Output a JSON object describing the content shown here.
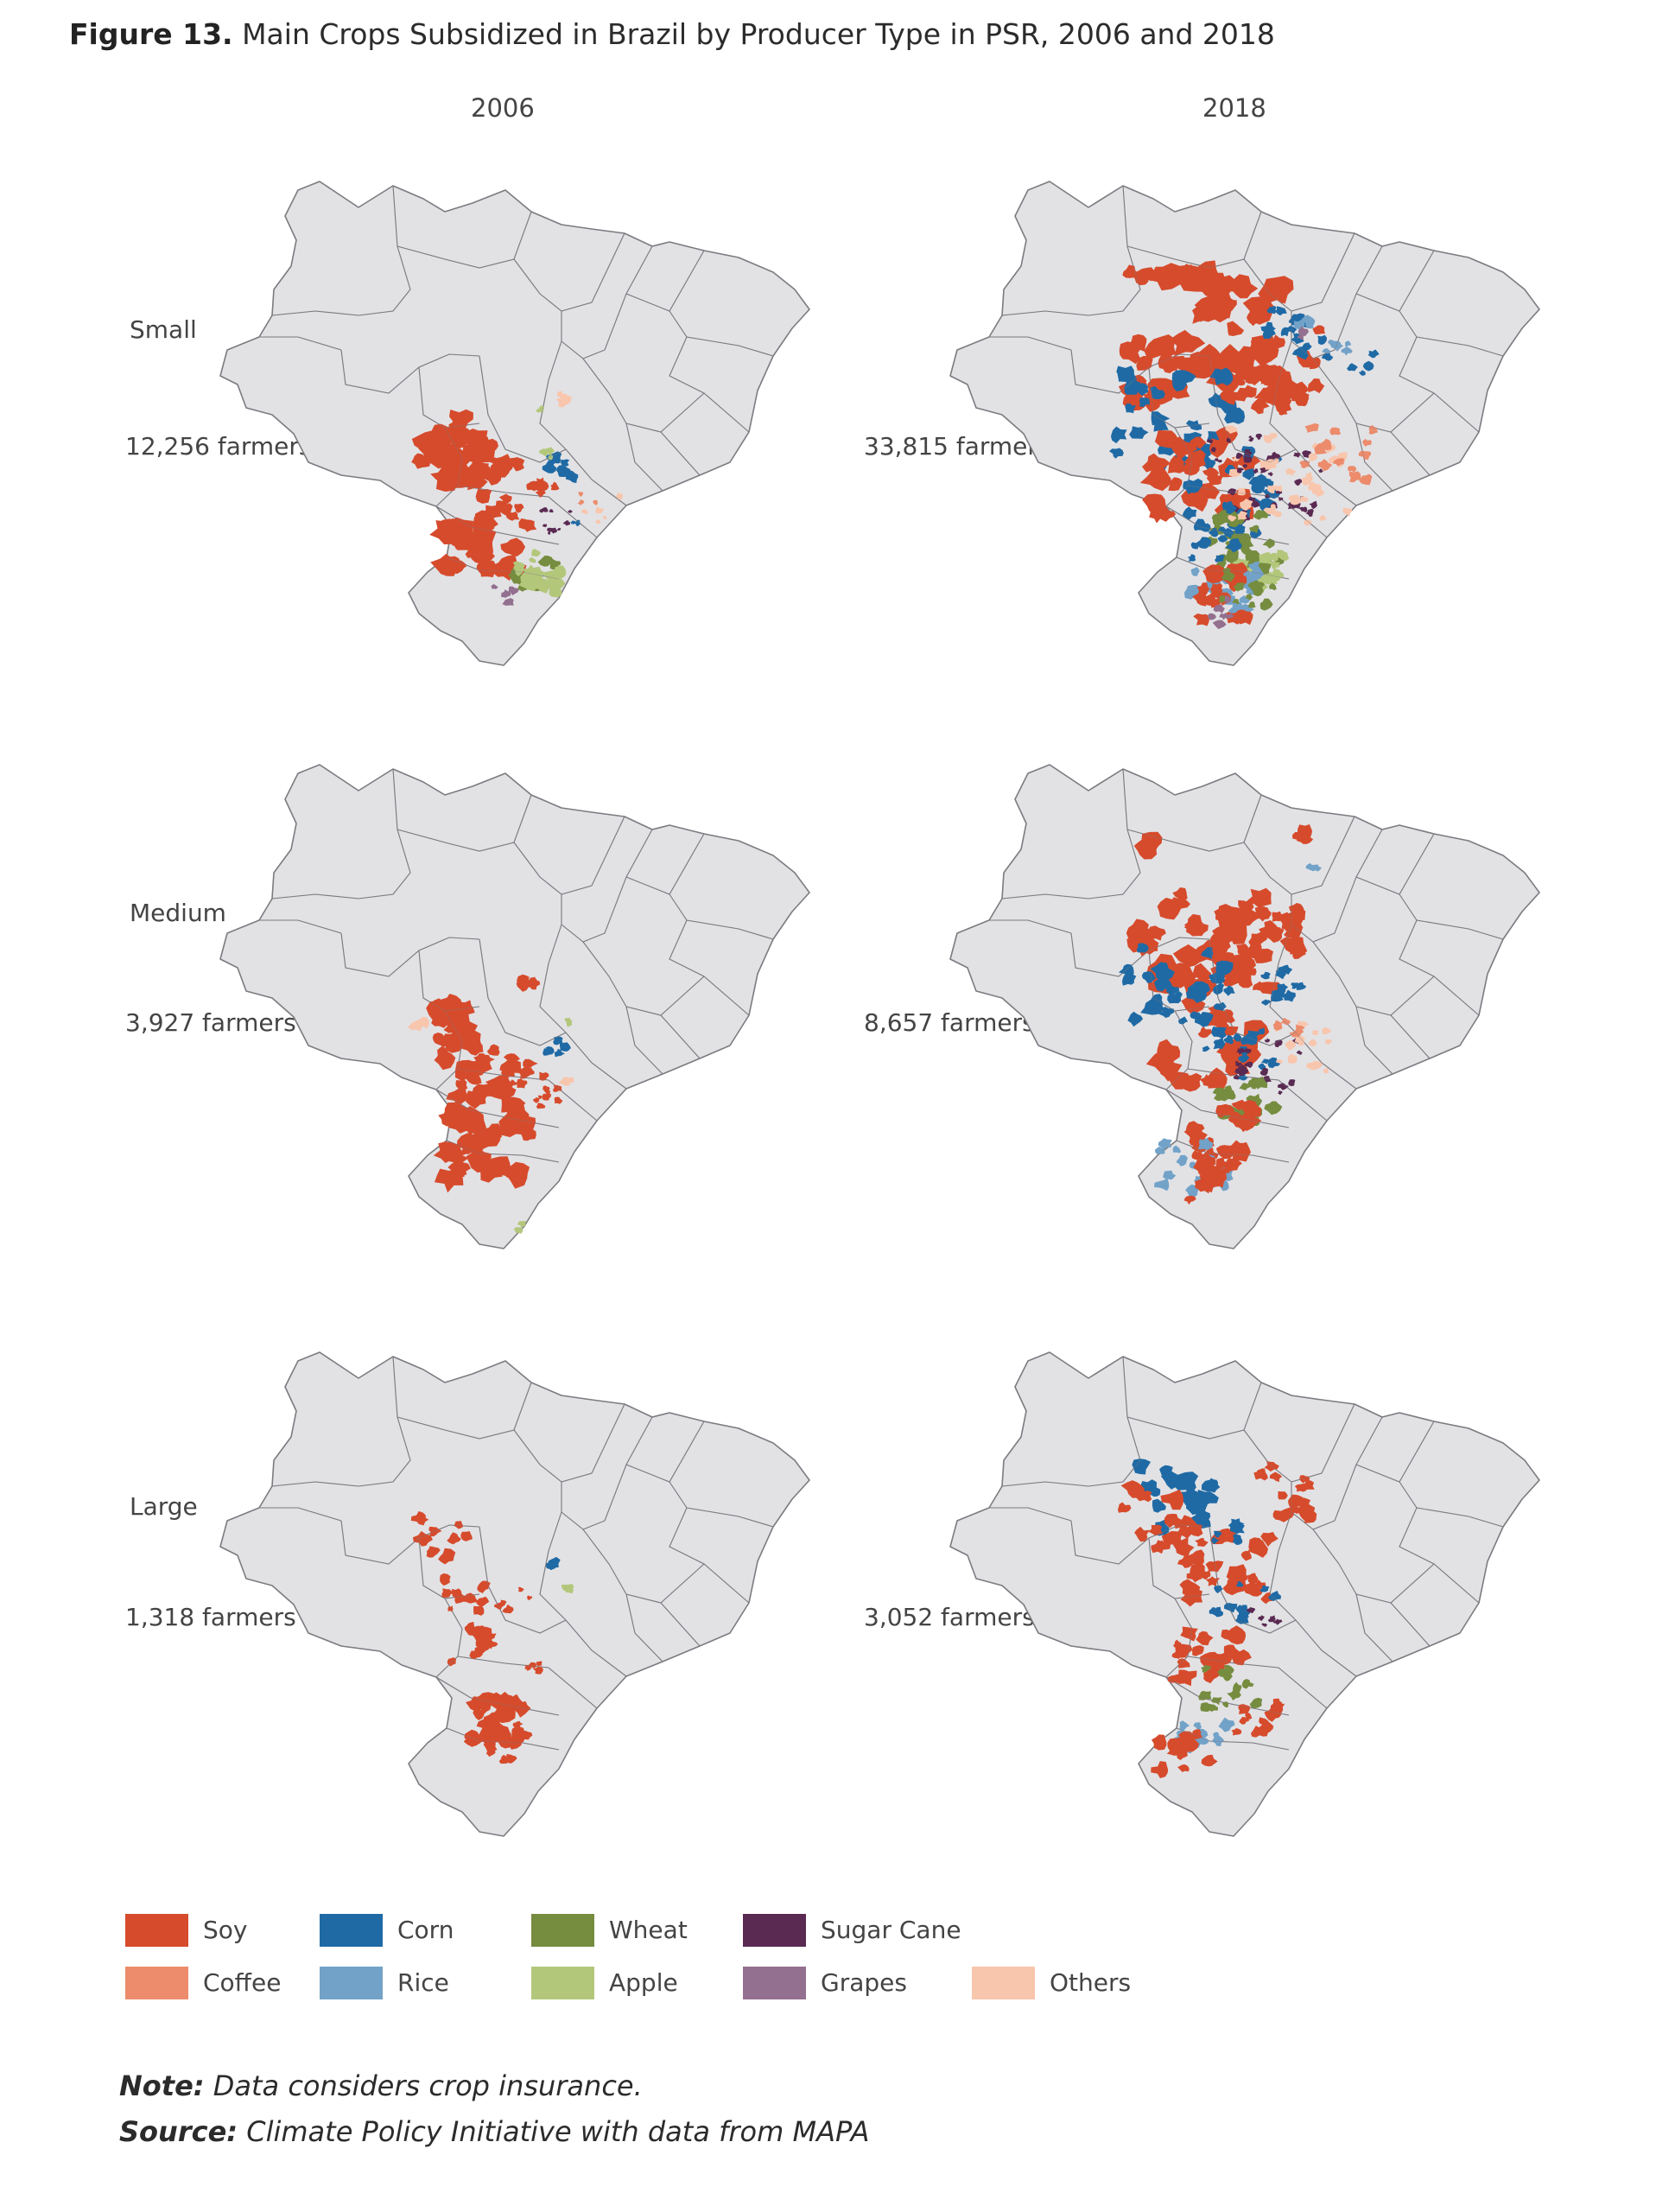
{
  "figure": {
    "label": "Figure 13.",
    "title": "Main Crops Subsidized in Brazil by Producer Type in PSR, 2006 and 2018"
  },
  "columns": [
    "2006",
    "2018"
  ],
  "rows": [
    {
      "label": "Small",
      "counts": [
        "12,256 farmers",
        "33,815 farmers"
      ]
    },
    {
      "label": "Medium",
      "counts": [
        "3,927 farmers",
        "8,657 farmers"
      ]
    },
    {
      "label": "Large",
      "counts": [
        "1,318 farmers",
        "3,052 farmers"
      ]
    }
  ],
  "legend": [
    {
      "label": "Soy",
      "color": "#d64b2c"
    },
    {
      "label": "Corn",
      "color": "#1f6aa5"
    },
    {
      "label": "Wheat",
      "color": "#768c3f"
    },
    {
      "label": "Sugar Cane",
      "color": "#5a2a52"
    },
    {
      "label": "Coffee",
      "color": "#ec8c6c"
    },
    {
      "label": "Rice",
      "color": "#72a2c8"
    },
    {
      "label": "Apple",
      "color": "#b3c77b"
    },
    {
      "label": "Grapes",
      "color": "#93708f"
    },
    {
      "label": "Others",
      "color": "#f8c6ad"
    }
  ],
  "colors": {
    "land": "#e2e2e5",
    "border": "#7b7b80"
  },
  "note": {
    "label": "Note:",
    "text": "Data considers crop insurance."
  },
  "source": {
    "label": "Source:",
    "text": "Climate Policy Initiative with data from MAPA"
  }
}
